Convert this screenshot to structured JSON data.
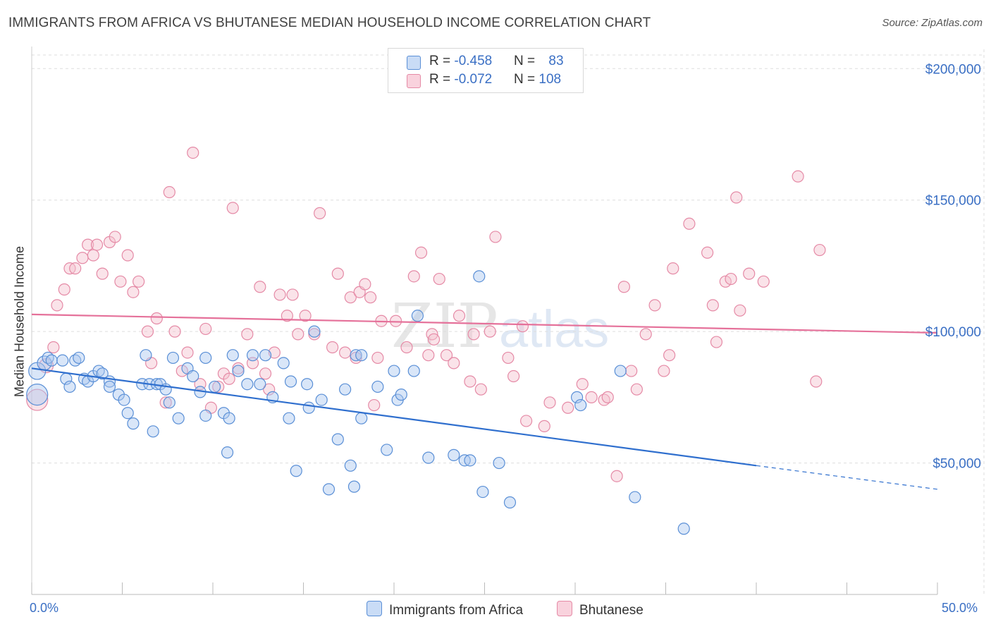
{
  "title": "IMMIGRANTS FROM AFRICA VS BHUTANESE MEDIAN HOUSEHOLD INCOME CORRELATION CHART",
  "source": "Source: ZipAtlas.com",
  "watermark": "ZIPatlas",
  "legend": {
    "rows": [
      {
        "r_label": "R = ",
        "r_value": "-0.458",
        "n_label": "N = ",
        "n_value": "83"
      },
      {
        "r_label": "R = ",
        "r_value": "-0.072",
        "n_label": "N = ",
        "n_value": "108"
      }
    ]
  },
  "bottom_legend": [
    "Immigrants from Africa",
    "Bhutanese"
  ],
  "colors": {
    "africa_fill": "#aac8f0",
    "africa_stroke": "#5a8fd6",
    "africa_line": "#2f6fce",
    "bhutanese_fill": "#f5c0cf",
    "bhutanese_stroke": "#e58aa6",
    "bhutanese_line": "#e5719a",
    "tick_label": "#3a6fc4",
    "grid": "#dddddd"
  },
  "chart_data": {
    "type": "scatter",
    "title": "IMMIGRANTS FROM AFRICA VS BHUTANESE MEDIAN HOUSEHOLD INCOME CORRELATION CHART",
    "xlabel": "",
    "ylabel": "Median Household Income",
    "xlim": [
      0,
      50
    ],
    "ylim": [
      0,
      210000
    ],
    "x_tick_labels": [
      "0.0%",
      "50.0%"
    ],
    "y_ticks": [
      50000,
      100000,
      150000,
      200000
    ],
    "y_tick_labels": [
      "$50,000",
      "$100,000",
      "$150,000",
      "$200,000"
    ],
    "grid": true,
    "legend_position": "top-center",
    "series": [
      {
        "name": "Immigrants from Africa",
        "r": -0.458,
        "n": 83,
        "trend": {
          "x0": 0,
          "y0": 86000,
          "x1": 40,
          "y1": 49000,
          "dashed_to_x": 50,
          "dashed_to_y": 40000
        },
        "points": [
          [
            0.3,
            76000,
            15
          ],
          [
            0.3,
            85000,
            12
          ],
          [
            0.7,
            88000,
            10
          ],
          [
            0.9,
            90000,
            8
          ],
          [
            1.1,
            89000,
            8
          ],
          [
            1.7,
            89000,
            8
          ],
          [
            2.4,
            89000,
            8
          ],
          [
            2.6,
            90000,
            8
          ],
          [
            1.9,
            82000,
            8
          ],
          [
            2.1,
            79000,
            8
          ],
          [
            2.9,
            82000,
            8
          ],
          [
            3.1,
            81000,
            8
          ],
          [
            3.4,
            83000,
            8
          ],
          [
            3.7,
            85000,
            8
          ],
          [
            3.9,
            84000,
            8
          ],
          [
            4.3,
            81000,
            8
          ],
          [
            4.3,
            79000,
            8
          ],
          [
            4.8,
            76000,
            8
          ],
          [
            5.1,
            74000,
            8
          ],
          [
            5.3,
            69000,
            8
          ],
          [
            5.6,
            65000,
            8
          ],
          [
            6.1,
            80000,
            8
          ],
          [
            6.3,
            91000,
            8
          ],
          [
            6.5,
            80000,
            8
          ],
          [
            6.9,
            80000,
            8
          ],
          [
            7.1,
            80000,
            8
          ],
          [
            7.4,
            78000,
            8
          ],
          [
            7.6,
            73000,
            8
          ],
          [
            8.1,
            67000,
            8
          ],
          [
            8.6,
            86000,
            8
          ],
          [
            8.9,
            83000,
            8
          ],
          [
            7.8,
            90000,
            8
          ],
          [
            9.3,
            77000,
            8
          ],
          [
            9.6,
            68000,
            8
          ],
          [
            9.6,
            90000,
            8
          ],
          [
            10.1,
            79000,
            8
          ],
          [
            10.6,
            69000,
            8
          ],
          [
            10.9,
            67000,
            8
          ],
          [
            11.1,
            91000,
            8
          ],
          [
            11.4,
            85000,
            8
          ],
          [
            11.9,
            80000,
            8
          ],
          [
            12.2,
            91000,
            8
          ],
          [
            12.6,
            80000,
            8
          ],
          [
            12.9,
            91000,
            8
          ],
          [
            13.3,
            75000,
            8
          ],
          [
            13.9,
            88000,
            8
          ],
          [
            14.2,
            67000,
            8
          ],
          [
            14.3,
            81000,
            8
          ],
          [
            14.6,
            47000,
            8
          ],
          [
            15.2,
            80000,
            8
          ],
          [
            15.3,
            71000,
            8
          ],
          [
            15.6,
            100000,
            8
          ],
          [
            16.0,
            74000,
            8
          ],
          [
            16.4,
            40000,
            8
          ],
          [
            16.9,
            59000,
            8
          ],
          [
            17.3,
            78000,
            8
          ],
          [
            17.6,
            49000,
            8
          ],
          [
            17.8,
            41000,
            8
          ],
          [
            17.9,
            91000,
            8
          ],
          [
            18.2,
            91000,
            8
          ],
          [
            18.2,
            67000,
            8
          ],
          [
            19.1,
            79000,
            8
          ],
          [
            19.6,
            55000,
            8
          ],
          [
            20.0,
            85000,
            8
          ],
          [
            20.2,
            74000,
            8
          ],
          [
            20.4,
            76000,
            8
          ],
          [
            21.1,
            85000,
            8
          ],
          [
            21.3,
            106000,
            8
          ],
          [
            21.9,
            52000,
            8
          ],
          [
            23.3,
            53000,
            8
          ],
          [
            23.9,
            51000,
            8
          ],
          [
            24.2,
            51000,
            8
          ],
          [
            24.7,
            121000,
            8
          ],
          [
            24.9,
            39000,
            8
          ],
          [
            25.8,
            50000,
            8
          ],
          [
            26.4,
            35000,
            8
          ],
          [
            30.1,
            75000,
            8
          ],
          [
            30.3,
            72000,
            8
          ],
          [
            32.5,
            85000,
            8
          ],
          [
            33.3,
            37000,
            8
          ],
          [
            36.0,
            25000,
            8
          ],
          [
            10.8,
            54000,
            8
          ],
          [
            6.7,
            62000,
            8
          ]
        ]
      },
      {
        "name": "Bhutanese",
        "r": -0.072,
        "n": 108,
        "trend": {
          "x0": 0,
          "y0": 106500,
          "x1": 50,
          "y1": 99500
        },
        "points": [
          [
            0.3,
            74000,
            15
          ],
          [
            0.8,
            87000,
            10
          ],
          [
            1.2,
            94000,
            8
          ],
          [
            1.4,
            110000,
            8
          ],
          [
            1.8,
            116000,
            8
          ],
          [
            2.1,
            124000,
            8
          ],
          [
            2.4,
            124000,
            8
          ],
          [
            2.8,
            128000,
            8
          ],
          [
            3.1,
            133000,
            8
          ],
          [
            3.4,
            129000,
            8
          ],
          [
            3.6,
            133000,
            8
          ],
          [
            3.9,
            122000,
            8
          ],
          [
            4.3,
            134000,
            8
          ],
          [
            4.6,
            136000,
            8
          ],
          [
            4.9,
            119000,
            8
          ],
          [
            5.3,
            129000,
            8
          ],
          [
            5.6,
            115000,
            8
          ],
          [
            5.9,
            119000,
            8
          ],
          [
            6.4,
            100000,
            8
          ],
          [
            6.6,
            88000,
            8
          ],
          [
            6.9,
            105000,
            8
          ],
          [
            7.4,
            73000,
            8
          ],
          [
            7.6,
            153000,
            8
          ],
          [
            7.9,
            100000,
            8
          ],
          [
            8.3,
            85000,
            8
          ],
          [
            8.6,
            92000,
            8
          ],
          [
            8.9,
            168000,
            8
          ],
          [
            9.3,
            80000,
            8
          ],
          [
            9.6,
            101000,
            8
          ],
          [
            9.9,
            71000,
            8
          ],
          [
            10.3,
            79000,
            8
          ],
          [
            10.6,
            84000,
            8
          ],
          [
            10.9,
            82000,
            8
          ],
          [
            11.1,
            147000,
            8
          ],
          [
            11.4,
            86000,
            8
          ],
          [
            11.9,
            99000,
            8
          ],
          [
            12.2,
            88000,
            8
          ],
          [
            12.6,
            117000,
            8
          ],
          [
            12.9,
            84000,
            8
          ],
          [
            13.1,
            78000,
            8
          ],
          [
            13.4,
            92000,
            8
          ],
          [
            13.7,
            114000,
            8
          ],
          [
            14.1,
            106000,
            8
          ],
          [
            14.4,
            114000,
            8
          ],
          [
            14.7,
            99000,
            8
          ],
          [
            15.1,
            106000,
            8
          ],
          [
            15.6,
            99000,
            8
          ],
          [
            15.9,
            145000,
            8
          ],
          [
            16.6,
            94000,
            8
          ],
          [
            16.9,
            122000,
            8
          ],
          [
            17.3,
            92000,
            8
          ],
          [
            17.6,
            113000,
            8
          ],
          [
            17.9,
            90000,
            8
          ],
          [
            18.1,
            115000,
            8
          ],
          [
            18.4,
            118000,
            8
          ],
          [
            18.7,
            113000,
            8
          ],
          [
            18.9,
            72000,
            8
          ],
          [
            19.3,
            104000,
            8
          ],
          [
            19.1,
            90000,
            8
          ],
          [
            20.1,
            104000,
            8
          ],
          [
            20.7,
            94000,
            8
          ],
          [
            21.1,
            121000,
            8
          ],
          [
            21.5,
            130000,
            8
          ],
          [
            21.9,
            91000,
            8
          ],
          [
            22.1,
            99000,
            8
          ],
          [
            22.5,
            120000,
            8
          ],
          [
            22.9,
            91000,
            8
          ],
          [
            23.3,
            88000,
            8
          ],
          [
            23.6,
            106000,
            8
          ],
          [
            24.2,
            81000,
            8
          ],
          [
            24.4,
            99000,
            8
          ],
          [
            24.8,
            78000,
            8
          ],
          [
            25.3,
            100000,
            8
          ],
          [
            25.6,
            136000,
            8
          ],
          [
            26.3,
            90000,
            8
          ],
          [
            26.6,
            83000,
            8
          ],
          [
            27.1,
            102000,
            8
          ],
          [
            27.3,
            66000,
            8
          ],
          [
            28.3,
            64000,
            8
          ],
          [
            28.6,
            73000,
            8
          ],
          [
            29.6,
            71000,
            8
          ],
          [
            30.4,
            80000,
            8
          ],
          [
            30.9,
            75000,
            8
          ],
          [
            31.6,
            74000,
            8
          ],
          [
            31.8,
            75000,
            8
          ],
          [
            32.3,
            45000,
            8
          ],
          [
            32.7,
            117000,
            8
          ],
          [
            33.1,
            85000,
            8
          ],
          [
            33.4,
            78000,
            8
          ],
          [
            33.9,
            99000,
            8
          ],
          [
            34.4,
            110000,
            8
          ],
          [
            34.9,
            85000,
            8
          ],
          [
            35.2,
            91000,
            8
          ],
          [
            35.4,
            124000,
            8
          ],
          [
            36.3,
            141000,
            8
          ],
          [
            37.3,
            130000,
            8
          ],
          [
            37.6,
            110000,
            8
          ],
          [
            37.8,
            96000,
            8
          ],
          [
            38.3,
            119000,
            8
          ],
          [
            38.6,
            120000,
            8
          ],
          [
            38.9,
            151000,
            8
          ],
          [
            39.1,
            108000,
            8
          ],
          [
            39.6,
            122000,
            8
          ],
          [
            40.4,
            119000,
            8
          ],
          [
            42.3,
            159000,
            8
          ],
          [
            43.3,
            81000,
            8
          ],
          [
            43.5,
            131000,
            8
          ],
          [
            22.2,
            97000,
            8
          ]
        ]
      }
    ]
  }
}
